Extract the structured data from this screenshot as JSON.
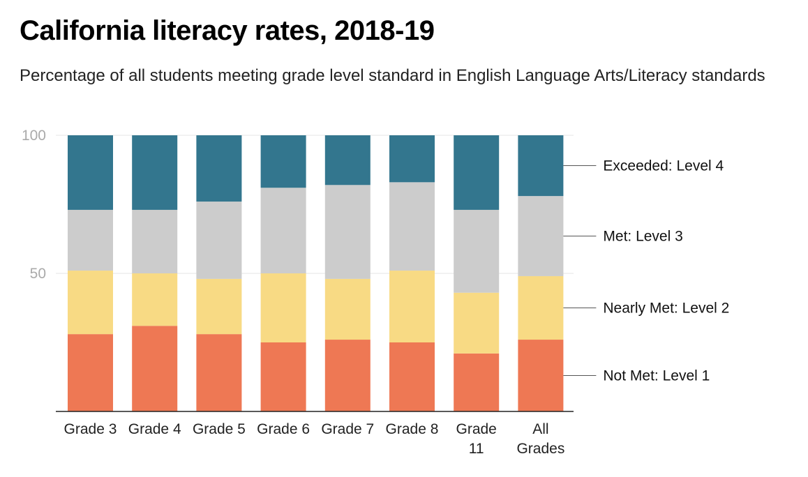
{
  "title": "California literacy rates, 2018-19",
  "subtitle": "Percentage of all students meeting grade level standard in English Language Arts/Literacy standards",
  "chart_data": {
    "type": "bar",
    "stacked": true,
    "categories": [
      [
        "Grade 3"
      ],
      [
        "Grade 4"
      ],
      [
        "Grade 5"
      ],
      [
        "Grade 6"
      ],
      [
        "Grade 7"
      ],
      [
        "Grade 8"
      ],
      [
        "Grade",
        "11"
      ],
      [
        "All",
        "Grades"
      ]
    ],
    "series": [
      {
        "name": "Not Met: Level 1",
        "color": "#ee7854",
        "values": [
          28,
          31,
          28,
          25,
          26,
          25,
          21,
          26
        ]
      },
      {
        "name": "Nearly Met: Level 2",
        "color": "#f8da84",
        "values": [
          23,
          19,
          20,
          25,
          22,
          26,
          22,
          23
        ]
      },
      {
        "name": "Met: Level 3",
        "color": "#cccccc",
        "values": [
          22,
          23,
          28,
          31,
          34,
          32,
          30,
          29
        ]
      },
      {
        "name": "Exceeded: Level 4",
        "color": "#33768e",
        "values": [
          27,
          27,
          24,
          19,
          18,
          17,
          27,
          22
        ]
      }
    ],
    "yticks": [
      50,
      100
    ],
    "ylim": [
      0,
      100
    ],
    "grid": true,
    "legend_position": "right"
  }
}
